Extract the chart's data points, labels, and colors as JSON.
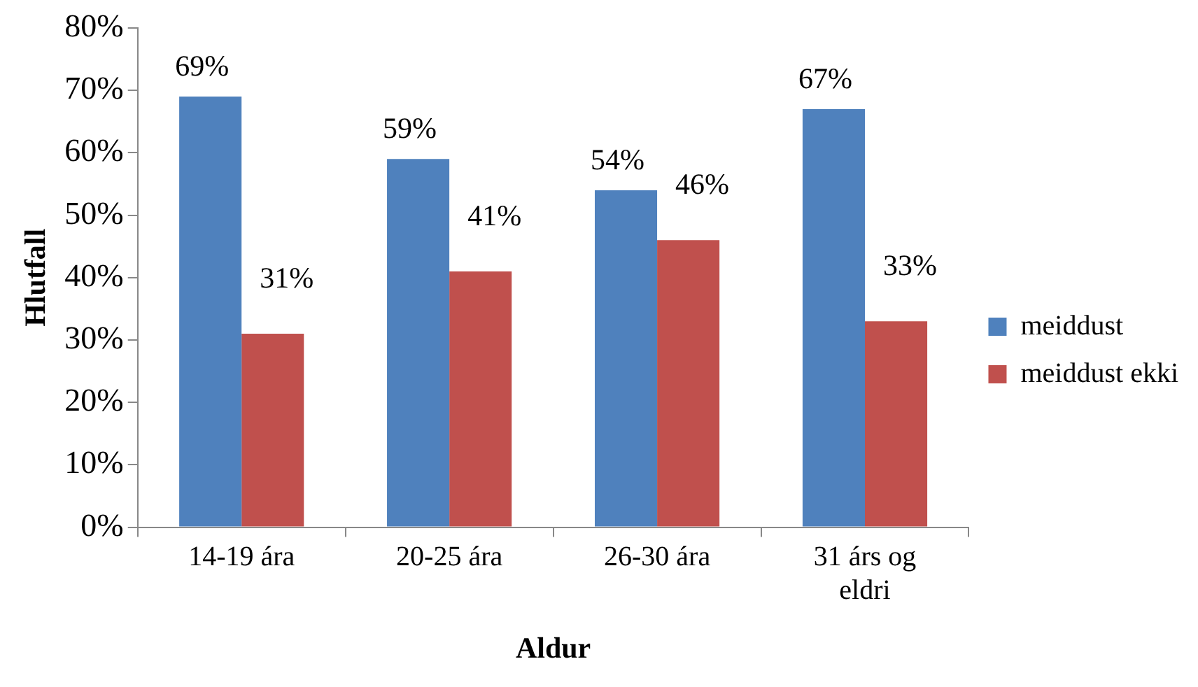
{
  "chart_data": {
    "type": "bar",
    "xlabel": "Aldur",
    "ylabel": "Hlutfall",
    "categories": [
      "14-19 ára",
      "20-25 ára",
      "26-30 ára",
      "31 árs og eldri"
    ],
    "series": [
      {
        "name": "meiddust",
        "color": "#4f81bd",
        "values": [
          69,
          59,
          54,
          67
        ],
        "value_labels": [
          "69%",
          "59%",
          "54%",
          "67%"
        ]
      },
      {
        "name": "meiddust ekki",
        "color": "#c0504d",
        "values": [
          31,
          41,
          46,
          33
        ],
        "value_labels": [
          "31%",
          "41%",
          "46%",
          "33%"
        ]
      }
    ],
    "ylim": [
      0,
      80
    ],
    "yticks": [
      {
        "value": 0,
        "label": "0%"
      },
      {
        "value": 10,
        "label": "10%"
      },
      {
        "value": 20,
        "label": "20%"
      },
      {
        "value": 30,
        "label": "30%"
      },
      {
        "value": 40,
        "label": "40%"
      },
      {
        "value": 50,
        "label": "50%"
      },
      {
        "value": 60,
        "label": "60%"
      },
      {
        "value": 70,
        "label": "70%"
      },
      {
        "value": 80,
        "label": "80%"
      }
    ],
    "grid": false,
    "legend": "right"
  }
}
